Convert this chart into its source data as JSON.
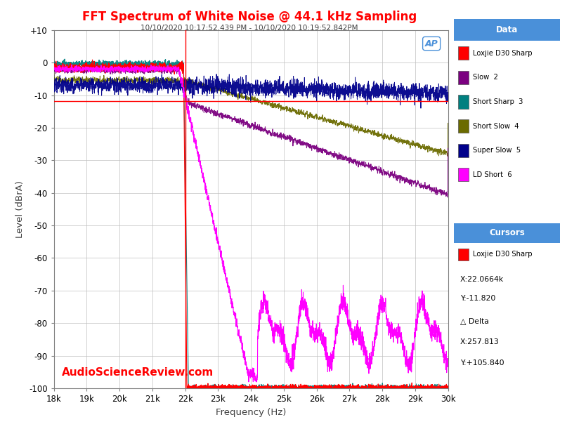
{
  "title": "FFT Spectrum of White Noise @ 44.1 kHz Sampling",
  "subtitle": "10/10/2020 10:17:52.439 PM - 10/10/2020 10:19:52.842PM",
  "xlabel": "Frequency (Hz)",
  "ylabel": "Level (dBrA)",
  "xlim": [
    18000,
    30000
  ],
  "ylim": [
    -100,
    10
  ],
  "yticks": [
    10,
    0,
    -10,
    -20,
    -30,
    -40,
    -50,
    -60,
    -70,
    -80,
    -90,
    -100
  ],
  "ytick_labels": [
    "+10",
    "0",
    "-10",
    "-20",
    "-30",
    "-40",
    "-50",
    "-60",
    "-70",
    "-80",
    "-90",
    "-100"
  ],
  "xticks": [
    18000,
    19000,
    20000,
    21000,
    22000,
    23000,
    24000,
    25000,
    26000,
    27000,
    28000,
    29000,
    30000
  ],
  "xtick_labels": [
    "18k",
    "19k",
    "20k",
    "21k",
    "22k",
    "23k",
    "24k",
    "25k",
    "26k",
    "27k",
    "28k",
    "29k",
    "30k"
  ],
  "title_color": "#FF0000",
  "subtitle_color": "#404040",
  "background_color": "#FFFFFF",
  "plot_bg_color": "#FFFFFF",
  "grid_color": "#C0C0C0",
  "cursor_vline_x": 22000,
  "cursor_hline_y": -11.82,
  "series": [
    {
      "name": "Loxjie D30 Sharp",
      "color": "#FF0000"
    },
    {
      "name": "Slow 2",
      "color": "#7B0080"
    },
    {
      "name": "Short Sharp 3",
      "color": "#008080"
    },
    {
      "name": "Short Slow 4",
      "color": "#6B6B00"
    },
    {
      "name": "Super Slow 5",
      "color": "#00008B"
    },
    {
      "name": "LD Short 6",
      "color": "#FF00FF"
    }
  ],
  "legend_labels": [
    "Loxjie D30 Sharp",
    "Slow  2",
    "Short Sharp  3",
    "Short Slow  4",
    "Super Slow  5",
    "LD Short  6"
  ],
  "legend_header_color": "#4A90D9",
  "watermark": "AudioScienceReview.com",
  "watermark_color": "#FF0000",
  "ap_logo_color": "#4A90D9",
  "cursor_box": {
    "header": "Cursors",
    "label": "Loxjie D30 Sharp",
    "x_val": "X:22.0664k",
    "y_val": "Y:-11.820",
    "delta_header": "△ Delta",
    "delta_x": "X:257.813",
    "delta_y": "Y:+105.840"
  }
}
